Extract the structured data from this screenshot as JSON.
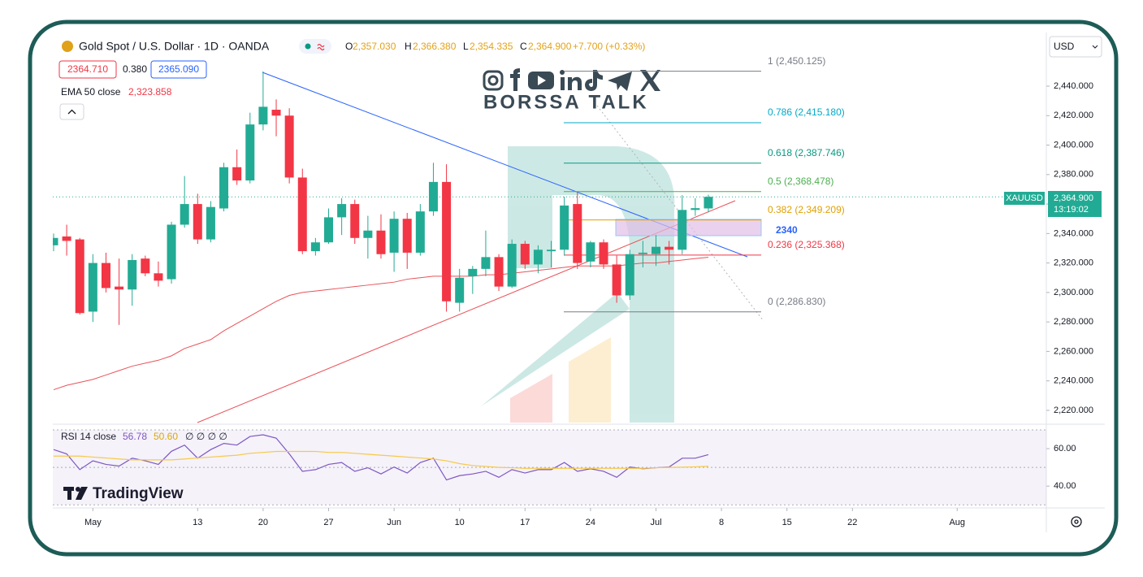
{
  "header": {
    "symbol": "Gold Spot / U.S. Dollar · 1D · OANDA",
    "ohlc": [
      {
        "key": "O",
        "value": "2,357.030"
      },
      {
        "key": "H",
        "value": "2,366.380"
      },
      {
        "key": "L",
        "value": "2,354.335"
      },
      {
        "key": "C",
        "value": "2,364.900"
      }
    ],
    "change": "+7.700 (+0.33%)",
    "bid": "2364.710",
    "spread": "0.380",
    "ask": "2365.090",
    "ema_legend": {
      "name": "EMA 50 close",
      "value": "2,323.858"
    },
    "currency": "USD"
  },
  "watermark": "BORSSA TALK",
  "brand": "TradingView",
  "price_tag": {
    "symbol": "XAUUSD",
    "countdown": "13:19:02"
  },
  "chart_data": [
    {
      "type": "candlestick",
      "x": [
        "04-26",
        "04-29",
        "04-30",
        "05-01",
        "05-02",
        "05-03",
        "05-06",
        "05-07",
        "05-08",
        "05-09",
        "05-10",
        "05-13",
        "05-14",
        "05-15",
        "05-16",
        "05-17",
        "05-20",
        "05-21",
        "05-22",
        "05-23",
        "05-24",
        "05-27",
        "05-28",
        "05-29",
        "05-30",
        "05-31",
        "06-03",
        "06-04",
        "06-05",
        "06-06",
        "06-07",
        "06-10",
        "06-11",
        "06-12",
        "06-13",
        "06-14",
        "06-17",
        "06-18",
        "06-19",
        "06-20",
        "06-21",
        "06-24",
        "06-25",
        "06-26",
        "06-27",
        "06-28",
        "07-01",
        "07-02",
        "07-03",
        "07-04",
        "07-05"
      ],
      "open": [
        2332,
        2338,
        2336,
        2287,
        2320,
        2304,
        2302,
        2323,
        2313,
        2309,
        2346,
        2360,
        2336,
        2357,
        2385,
        2376,
        2414,
        2424,
        2420,
        2378,
        2328,
        2334,
        2351,
        2360,
        2337,
        2342,
        2327,
        2350,
        2327,
        2355,
        2375,
        2293,
        2311,
        2316,
        2324,
        2304,
        2333,
        2319,
        2328,
        2329,
        2360,
        2321,
        2334,
        2319,
        2298,
        2326,
        2326,
        2331,
        2329,
        2356,
        2357.03
      ],
      "high": [
        2340,
        2346,
        2337,
        2326,
        2327,
        2323,
        2326,
        2325,
        2321,
        2348,
        2379,
        2367,
        2362,
        2388,
        2397,
        2422,
        2450,
        2431,
        2425,
        2384,
        2337,
        2357,
        2364,
        2363,
        2352,
        2353,
        2355,
        2354,
        2360,
        2388,
        2387,
        2316,
        2318,
        2342,
        2326,
        2336,
        2335,
        2332,
        2335,
        2365,
        2368,
        2335,
        2336,
        2325,
        2329,
        2335,
        2339,
        2335,
        2366,
        2364,
        2366.38
      ],
      "low": [
        2328,
        2325,
        2285,
        2280,
        2300,
        2278,
        2291,
        2311,
        2304,
        2306,
        2344,
        2333,
        2334,
        2355,
        2373,
        2374,
        2410,
        2406,
        2374,
        2326,
        2325,
        2333,
        2339,
        2333,
        2323,
        2323,
        2314,
        2316,
        2325,
        2352,
        2287,
        2287,
        2299,
        2311,
        2301,
        2303,
        2316,
        2313,
        2317,
        2325,
        2316,
        2317,
        2316,
        2293,
        2295,
        2317,
        2318,
        2319,
        2326,
        2352,
        2354.335
      ],
      "close": [
        2337,
        2335,
        2286,
        2320,
        2303,
        2302,
        2322,
        2313,
        2308,
        2346,
        2360,
        2336,
        2358,
        2385,
        2376,
        2414,
        2426,
        2420,
        2378,
        2328,
        2334,
        2351,
        2360,
        2337,
        2342,
        2326,
        2350,
        2327,
        2355,
        2375,
        2294,
        2310,
        2316,
        2324,
        2304,
        2333,
        2319,
        2329,
        2329,
        2359,
        2320,
        2334,
        2319,
        2298,
        2326,
        2327,
        2331,
        2329,
        2356,
        2357.2,
        2364.9
      ],
      "up_color": "#22ab94",
      "down_color": "#f23645",
      "ema": {
        "color": "#e8535a",
        "values": [
          2234,
          2237,
          2239,
          2241,
          2244,
          2247,
          2250,
          2252,
          2254,
          2257,
          2262,
          2265,
          2268,
          2274,
          2279,
          2284,
          2289,
          2294,
          2298,
          2300,
          2301,
          2302,
          2303,
          2304,
          2305,
          2306,
          2307,
          2309,
          2310,
          2311,
          2311,
          2311,
          2311,
          2312,
          2312,
          2313,
          2314,
          2315,
          2316,
          2317,
          2318,
          2318,
          2318,
          2318,
          2319,
          2320,
          2320,
          2321,
          2322,
          2323,
          2323.858
        ]
      },
      "ylim": [
        2211.7,
        2476.4
      ],
      "yticks": [
        {
          "value": 2220,
          "label": "2,220.000"
        },
        {
          "value": 2240,
          "label": "2,240.000"
        },
        {
          "value": 2260,
          "label": "2,260.000"
        },
        {
          "value": 2280,
          "label": "2,280.000"
        },
        {
          "value": 2300,
          "label": "2,300.000"
        },
        {
          "value": 2320,
          "label": "2,320.000"
        },
        {
          "value": 2340,
          "label": "2,340.000"
        },
        {
          "value": 2360,
          "label": "2,360.000"
        },
        {
          "value": 2380,
          "label": "2,380.000"
        },
        {
          "value": 2400,
          "label": "2,400.000"
        },
        {
          "value": 2420,
          "label": "2,420.000"
        },
        {
          "value": 2440,
          "label": "2,440.000"
        }
      ],
      "xticks": [
        {
          "value": "05-01",
          "label": "May"
        },
        {
          "value": "05-13",
          "label": "13"
        },
        {
          "value": "05-20",
          "label": "20"
        },
        {
          "value": "05-27",
          "label": "27"
        },
        {
          "value": "06-03",
          "label": "Jun"
        },
        {
          "value": "06-10",
          "label": "10"
        },
        {
          "value": "06-17",
          "label": "17"
        },
        {
          "value": "06-24",
          "label": "24"
        },
        {
          "value": "07-01",
          "label": "Jul"
        },
        {
          "value": "07-08",
          "label": "8"
        },
        {
          "value": "07-15",
          "label": "15"
        },
        {
          "value": "07-22",
          "label": "22"
        },
        {
          "value": "08-01",
          "label": "Aug"
        }
      ],
      "last_price": {
        "value": 2364.9,
        "label": "2,364.900"
      },
      "fib_levels": [
        {
          "value": 2450.125,
          "label": "1 (2,450.125)",
          "color": "#787b86"
        },
        {
          "value": 2415.18,
          "label": "0.786 (2,415.180)",
          "color": "#00a9c7"
        },
        {
          "value": 2387.746,
          "label": "0.618 (2,387.746)",
          "color": "#089981"
        },
        {
          "value": 2368.478,
          "label": "0.5 (2,368.478)",
          "color": "#4caf50"
        },
        {
          "value": 2349.209,
          "label": "0.382 (2,349.209)",
          "color": "#e0a000"
        },
        {
          "value": 2325.368,
          "label": "0.236 (2,325.368)",
          "color": "#f23645"
        },
        {
          "value": 2286.83,
          "label": "0 (2,286.830)",
          "color": "#787b86"
        }
      ],
      "annotation": "2340"
    },
    {
      "type": "line",
      "title": "RSI 14 close",
      "x": [
        "04-26",
        "04-29",
        "04-30",
        "05-01",
        "05-02",
        "05-03",
        "05-06",
        "05-07",
        "05-08",
        "05-09",
        "05-10",
        "05-13",
        "05-14",
        "05-15",
        "05-16",
        "05-17",
        "05-20",
        "05-21",
        "05-22",
        "05-23",
        "05-24",
        "05-27",
        "05-28",
        "05-29",
        "05-30",
        "05-31",
        "06-03",
        "06-04",
        "06-05",
        "06-06",
        "06-07",
        "06-10",
        "06-11",
        "06-12",
        "06-13",
        "06-14",
        "06-17",
        "06-18",
        "06-19",
        "06-20",
        "06-21",
        "06-24",
        "06-25",
        "06-26",
        "06-27",
        "06-28",
        "07-01",
        "07-02",
        "07-03",
        "07-04",
        "07-05"
      ],
      "series": [
        {
          "color": "#7e57c2",
          "values": [
            59.5,
            57.2,
            48.8,
            53.5,
            51.6,
            50.7,
            54.9,
            53.5,
            51.6,
            58.6,
            61.9,
            54.9,
            59.5,
            62.8,
            61.9,
            66.5,
            67.4,
            65.6,
            57.2,
            47.9,
            48.8,
            51.6,
            52.6,
            47.9,
            49.8,
            46.5,
            50.2,
            47.0,
            52.6,
            54.9,
            43.3,
            45.6,
            46.5,
            47.9,
            44.7,
            48.8,
            47.0,
            48.8,
            48.8,
            52.6,
            47.9,
            49.3,
            47.9,
            44.7,
            50.2,
            49.3,
            49.8,
            50.2,
            54.9,
            54.9,
            56.78
          ]
        },
        {
          "color": "#f7c948",
          "values": [
            56,
            56,
            56,
            55.5,
            55,
            54.5,
            54,
            54,
            54,
            54,
            54.5,
            55,
            55.5,
            56,
            56.5,
            57.5,
            58,
            58.5,
            58.5,
            58.5,
            58.5,
            58,
            58,
            57.5,
            57,
            56.5,
            56,
            55.5,
            55,
            54.5,
            53.5,
            52,
            51,
            50.5,
            50,
            49.8,
            49.5,
            49.5,
            49.5,
            49.5,
            49.5,
            49.5,
            49.5,
            49.5,
            49.5,
            49.5,
            49.8,
            50,
            50.1,
            50.3,
            50.6
          ]
        }
      ],
      "legend_values": [
        "56.78",
        "50.60"
      ],
      "legend_extra": "∅ ∅ ∅ ∅",
      "bands": [
        30,
        50,
        70
      ],
      "ylim": [
        28.8,
        72.6
      ],
      "yticks": [
        {
          "value": 60,
          "label": "60.00"
        },
        {
          "value": 40,
          "label": "40.00"
        }
      ]
    }
  ]
}
